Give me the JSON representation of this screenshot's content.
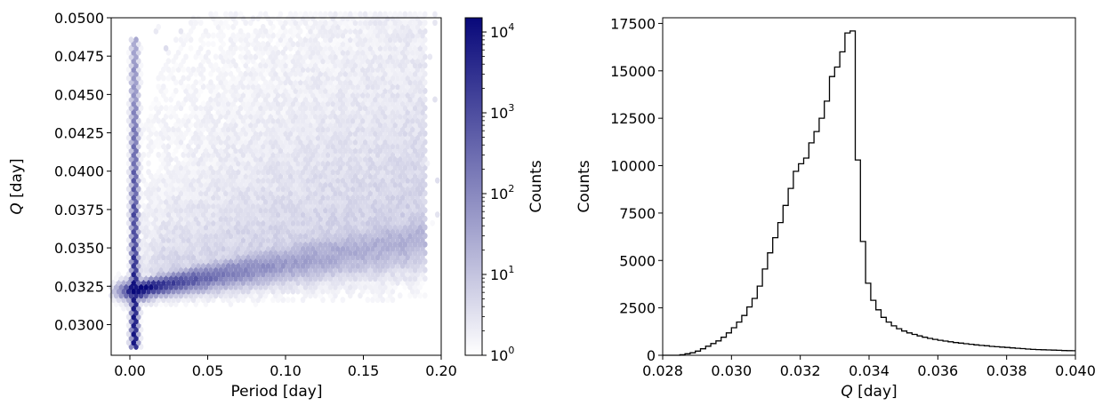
{
  "chart_data": [
    {
      "type": "heatmap",
      "xlabel": "Period [day]",
      "ylabel": "Q [day]",
      "ylabel_italic_part": "Q",
      "ylabel_rest": " [day]",
      "xlim": [
        -0.012,
        0.2
      ],
      "ylim": [
        0.028,
        0.05
      ],
      "xticks": [
        0.0,
        0.05,
        0.1,
        0.15,
        0.2
      ],
      "xtick_labels": [
        "0.00",
        "0.05",
        "0.10",
        "0.15",
        "0.20"
      ],
      "yticks": [
        0.03,
        0.0325,
        0.035,
        0.0375,
        0.04,
        0.0425,
        0.045,
        0.0475,
        0.05
      ],
      "ytick_labels": [
        "0.0300",
        "0.0325",
        "0.0350",
        "0.0375",
        "0.0400",
        "0.0425",
        "0.0450",
        "0.0475",
        "0.0500"
      ],
      "grid": false,
      "colorbar": {
        "label": "Counts",
        "scale": "log",
        "range": [
          1,
          15000
        ],
        "ticks": [
          1,
          10,
          100,
          1000,
          10000
        ],
        "tick_bases": [
          "10",
          "10",
          "10",
          "10",
          "10"
        ],
        "tick_exponents": [
          "0",
          "1",
          "2",
          "3",
          "4"
        ],
        "color_low": "#ffffff",
        "color_high": "#08087a"
      },
      "approx_density": {
        "vertical_band": {
          "x_center": 0.003,
          "q_range": [
            0.0285,
            0.0488
          ],
          "peak_log_counts": 4.1
        },
        "main_ridge": {
          "period_range": [
            0.0,
            0.19
          ],
          "q_start": 0.0322,
          "q_slope": 0.018,
          "peak_log_counts": 3.6
        },
        "core": {
          "x_center": 0.004,
          "q_center": 0.0322,
          "log_counts": 4.15
        }
      }
    },
    {
      "type": "histogram",
      "xlabel": "Q [day]",
      "xlabel_italic_part": "Q",
      "xlabel_rest": " [day]",
      "ylabel": "Counts",
      "xlim": [
        0.028,
        0.04
      ],
      "ylim": [
        0,
        17800
      ],
      "xticks": [
        0.028,
        0.03,
        0.032,
        0.034,
        0.036,
        0.038,
        0.04
      ],
      "xtick_labels": [
        "0.028",
        "0.030",
        "0.032",
        "0.034",
        "0.036",
        "0.038",
        "0.040"
      ],
      "yticks": [
        0,
        2500,
        5000,
        7500,
        10000,
        12500,
        15000,
        17500
      ],
      "ytick_labels": [
        "0",
        "2500",
        "5000",
        "7500",
        "10000",
        "12500",
        "15000",
        "17500"
      ],
      "bin_start": 0.0285,
      "bin_width": 0.00015,
      "counts": [
        30,
        80,
        130,
        220,
        340,
        480,
        620,
        760,
        950,
        1180,
        1450,
        1750,
        2100,
        2550,
        3000,
        3650,
        4550,
        5400,
        6200,
        7000,
        7900,
        8800,
        9700,
        10100,
        10400,
        11200,
        11800,
        12500,
        13400,
        14700,
        15200,
        16000,
        17000,
        17100,
        10300,
        6000,
        3800,
        2900,
        2400,
        2000,
        1750,
        1550,
        1400,
        1280,
        1180,
        1100,
        1020,
        950,
        890,
        840,
        790,
        750,
        710,
        670,
        640,
        610,
        580,
        550,
        520,
        500,
        470,
        450,
        430,
        410,
        390,
        370,
        350,
        330,
        310,
        300,
        290,
        280,
        270,
        260,
        250,
        245,
        240
      ],
      "line_color": "#000000",
      "grid": false
    }
  ]
}
